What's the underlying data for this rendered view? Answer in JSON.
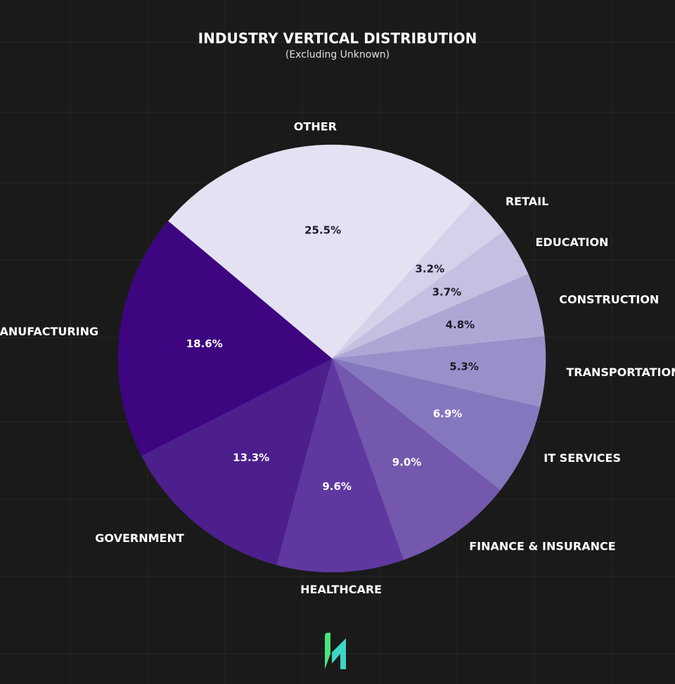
{
  "chart_data": {
    "type": "pie",
    "title": "INDUSTRY VERTICAL DISTRIBUTION",
    "subtitle": "(Excluding Unknown)",
    "categories": [
      "OTHER",
      "RETAIL",
      "EDUCATION",
      "CONSTRUCTION",
      "TRANSPORTATION",
      "IT SERVICES",
      "FINANCE & INSURANCE",
      "HEALTHCARE",
      "GOVERNMENT",
      "MANUFACTURING"
    ],
    "values": [
      25.5,
      3.2,
      3.7,
      4.8,
      5.3,
      6.9,
      9,
      9.6,
      13.3,
      18.6
    ],
    "value_labels": [
      "25.5%",
      "3.2%",
      "3.7%",
      "4.8%",
      "5.3%",
      "6.9%",
      "9.0%",
      "9.6%",
      "13.3%",
      "18.6%"
    ],
    "colors": [
      "#e4e2f2",
      "#d4d2ea",
      "#c4c0e1",
      "#aea7d5",
      "#9a90c9",
      "#8577be",
      "#7358ad",
      "#5f389f",
      "#4c1f8c",
      "#3d0680"
    ]
  }
}
